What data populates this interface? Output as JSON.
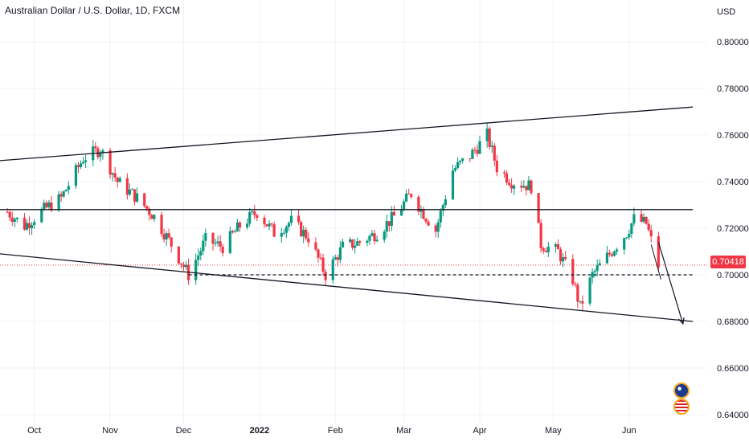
{
  "header": {
    "title": "Australian Dollar / U.S. Dollar, 1D, FXCM",
    "currency": "USD"
  },
  "last_price": {
    "label": "0.70418",
    "value": 0.70418,
    "color": "#f23645"
  },
  "colors": {
    "up": "#089981",
    "down": "#f23645",
    "line": "#131722",
    "grid": "#f0f3fa"
  },
  "flags": [
    "australia-flag-icon",
    "united-states-flag-icon"
  ],
  "chart_data": {
    "type": "candlestick",
    "symbol": "AUDUSD",
    "interval": "1D",
    "ylim": [
      0.64,
      0.81
    ],
    "y_ticks": [
      0.8,
      0.78,
      0.76,
      0.74,
      0.72,
      0.7,
      0.68,
      0.66,
      0.64
    ],
    "y_tick_labels": [
      "0.80000",
      "0.78000",
      "0.76000",
      "0.74000",
      "0.72000",
      "0.70000",
      "0.68000",
      "0.66000",
      "0.64000"
    ],
    "x_tick_labels": [
      "Oct",
      "Nov",
      "Dec",
      "2022",
      "Feb",
      "Mar",
      "Apr",
      "May",
      "Jun"
    ],
    "x_tick_dates": [
      "2021-10-01",
      "2021-11-01",
      "2021-12-01",
      "2022-01-01",
      "2022-02-01",
      "2022-03-01",
      "2022-04-01",
      "2022-05-01",
      "2022-06-01"
    ],
    "close_path": [
      [
        "2021-09-20",
        0.727
      ],
      [
        "2021-09-27",
        0.721
      ],
      [
        "2021-10-05",
        0.728
      ],
      [
        "2021-10-12",
        0.733
      ],
      [
        "2021-10-21",
        0.75
      ],
      [
        "2021-10-28",
        0.754
      ],
      [
        "2021-11-04",
        0.74
      ],
      [
        "2021-11-12",
        0.733
      ],
      [
        "2021-11-19",
        0.725
      ],
      [
        "2021-11-26",
        0.713
      ],
      [
        "2021-12-03",
        0.7
      ],
      [
        "2021-12-10",
        0.715
      ],
      [
        "2021-12-17",
        0.712
      ],
      [
        "2021-12-24",
        0.721
      ],
      [
        "2021-12-31",
        0.727
      ],
      [
        "2022-01-07",
        0.718
      ],
      [
        "2022-01-14",
        0.723
      ],
      [
        "2022-01-21",
        0.716
      ],
      [
        "2022-01-28",
        0.7
      ],
      [
        "2022-02-04",
        0.712
      ],
      [
        "2022-02-11",
        0.714
      ],
      [
        "2022-02-18",
        0.718
      ],
      [
        "2022-02-25",
        0.725
      ],
      [
        "2022-03-04",
        0.735
      ],
      [
        "2022-03-08",
        0.728
      ],
      [
        "2022-03-14",
        0.719
      ],
      [
        "2022-03-21",
        0.745
      ],
      [
        "2022-03-28",
        0.751
      ],
      [
        "2022-04-04",
        0.76
      ],
      [
        "2022-04-08",
        0.746
      ],
      [
        "2022-04-14",
        0.74
      ],
      [
        "2022-04-22",
        0.738
      ],
      [
        "2022-04-26",
        0.713
      ],
      [
        "2022-05-03",
        0.71
      ],
      [
        "2022-05-09",
        0.698
      ],
      [
        "2022-05-12",
        0.686
      ],
      [
        "2022-05-17",
        0.7
      ],
      [
        "2022-05-24",
        0.709
      ],
      [
        "2022-05-31",
        0.718
      ],
      [
        "2022-06-03",
        0.724
      ],
      [
        "2022-06-08",
        0.722
      ],
      [
        "2022-06-13",
        0.704
      ]
    ],
    "annotations": {
      "upper_trendline": [
        [
          "2021-09-17",
          0.749
        ],
        [
          "2022-06-27",
          0.772
        ]
      ],
      "lower_trendline": [
        [
          "2021-09-17",
          0.709
        ],
        [
          "2022-06-27",
          0.68
        ]
      ],
      "resistance_line": {
        "y": 0.728,
        "from": "2021-09-17",
        "to": "2022-06-27"
      },
      "support_line_dashed": {
        "y": 0.7,
        "from": "2021-12-03",
        "to": "2022-06-27"
      },
      "projection_arrow": [
        [
          "2022-06-13",
          0.714
        ],
        [
          "2022-06-23",
          0.679
        ]
      ],
      "last_price_line": 0.70418
    }
  }
}
